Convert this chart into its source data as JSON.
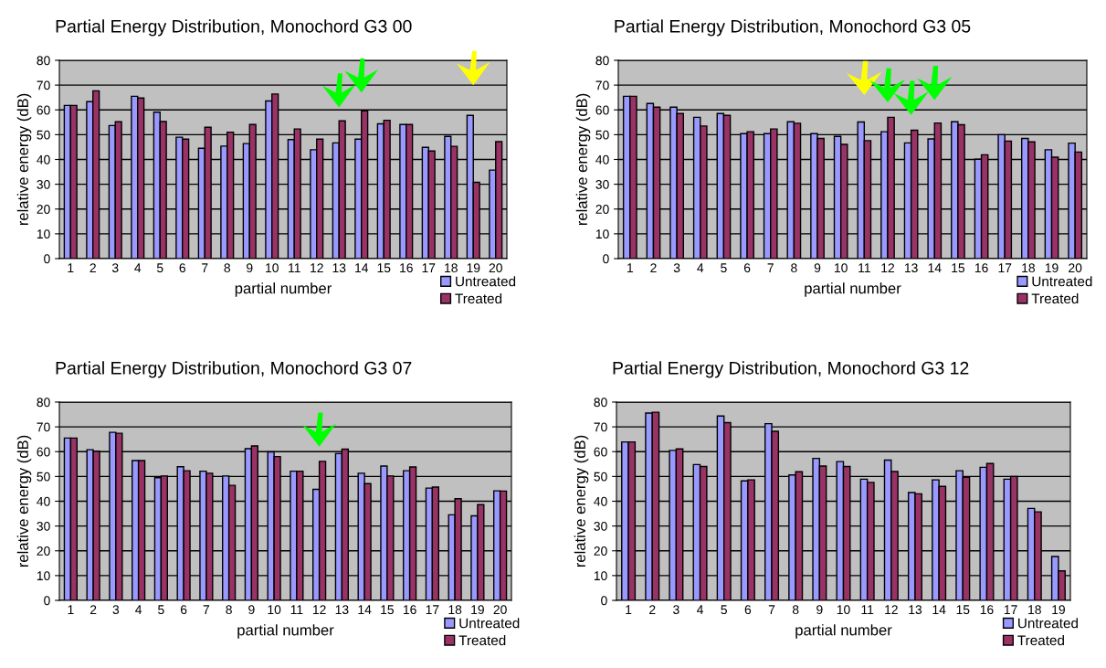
{
  "chart_data": [
    {
      "type": "bar",
      "title": "Partial Energy Distribution, Monochord G3 00",
      "xlabel": "partial number",
      "ylabel": "relative energy (dB)",
      "categories": [
        "1",
        "2",
        "3",
        "4",
        "5",
        "6",
        "7",
        "8",
        "9",
        "10",
        "11",
        "12",
        "13",
        "14",
        "15",
        "16",
        "17",
        "18",
        "19",
        "20"
      ],
      "series": [
        {
          "name": "Untreated",
          "color": "#9999ff",
          "values": [
            61.8,
            63.3,
            53.7,
            65.5,
            59.1,
            49,
            44.5,
            45.4,
            46.4,
            63.6,
            48,
            43.9,
            46.7,
            48.2,
            54.4,
            54.1,
            44.9,
            49.3,
            57.8,
            35.7
          ]
        },
        {
          "name": "Treated",
          "color": "#993366",
          "values": [
            61.8,
            67.7,
            55.2,
            64.8,
            55.3,
            48.2,
            53,
            51,
            54.1,
            66.4,
            52.3,
            48.2,
            55.6,
            59.6,
            55.8,
            54.1,
            43.4,
            45.3,
            30.8,
            47.2
          ]
        }
      ],
      "ylim": [
        0,
        80
      ],
      "yticks": [
        0,
        10,
        20,
        30,
        40,
        50,
        60,
        70,
        80
      ],
      "grid": "y",
      "legend": "bottom right"
    },
    {
      "type": "bar",
      "title": "Partial Energy Distribution, Monochord G3 05",
      "xlabel": "partial number",
      "ylabel": "relative energy (dB)",
      "categories": [
        "1",
        "2",
        "3",
        "4",
        "5",
        "6",
        "7",
        "8",
        "9",
        "10",
        "11",
        "12",
        "13",
        "14",
        "15",
        "16",
        "17",
        "18",
        "19",
        "20"
      ],
      "series": [
        {
          "name": "Untreated",
          "color": "#9999ff",
          "values": [
            65.5,
            62.6,
            61.1,
            57,
            58.5,
            50.4,
            50.4,
            55.2,
            50.4,
            49.3,
            55.1,
            51.2,
            46.7,
            48.3,
            55.2,
            40.1,
            50,
            48.5,
            43.9,
            46.6
          ]
        },
        {
          "name": "Treated",
          "color": "#993366",
          "values": [
            65.5,
            61.1,
            58.5,
            53.5,
            57.8,
            51.2,
            52.3,
            54.6,
            48.5,
            46.1,
            47.6,
            57,
            51.8,
            54.7,
            54,
            41.9,
            47.4,
            47.1,
            40.9,
            43
          ]
        }
      ],
      "ylim": [
        0,
        80
      ],
      "yticks": [
        0,
        10,
        20,
        30,
        40,
        50,
        60,
        70,
        80
      ],
      "grid": "y",
      "legend": "bottom right"
    },
    {
      "type": "bar",
      "title": "Partial Energy Distribution, Monochord G3 07",
      "xlabel": "partial number",
      "ylabel": "relative energy (dB)",
      "categories": [
        "1",
        "2",
        "3",
        "4",
        "5",
        "6",
        "7",
        "8",
        "9",
        "10",
        "11",
        "12",
        "13",
        "14",
        "15",
        "16",
        "17",
        "18",
        "19",
        "20"
      ],
      "series": [
        {
          "name": "Untreated",
          "color": "#9999ff",
          "values": [
            65.5,
            60.8,
            67.8,
            56.4,
            49.5,
            53.9,
            52.1,
            50.2,
            61.2,
            59.9,
            52.1,
            44.8,
            59.2,
            51.3,
            54.2,
            52.3,
            45.3,
            34.5,
            34.1,
            44.2
          ]
        },
        {
          "name": "Treated",
          "color": "#993366",
          "values": [
            65.5,
            60.2,
            67.4,
            56.4,
            50.2,
            52.3,
            51.3,
            46.4,
            62.3,
            58,
            52.1,
            56.1,
            61,
            47.1,
            50.2,
            53.8,
            45.7,
            41,
            38.6,
            44.1
          ]
        }
      ],
      "ylim": [
        0,
        80
      ],
      "yticks": [
        0,
        10,
        20,
        30,
        40,
        50,
        60,
        70,
        80
      ],
      "grid": "y",
      "legend": "bottom right"
    },
    {
      "type": "bar",
      "title": "Partial Energy Distribution, Monochord G3 12",
      "xlabel": "partial number",
      "ylabel": "relative energy (dB)",
      "categories": [
        "1",
        "2",
        "3",
        "4",
        "5",
        "6",
        "7",
        "8",
        "9",
        "10",
        "11",
        "12",
        "13",
        "14",
        "15",
        "16",
        "17",
        "18",
        "19"
      ],
      "series": [
        {
          "name": "Untreated",
          "color": "#9999ff",
          "values": [
            63.9,
            75.6,
            60.5,
            54.8,
            74.4,
            48.2,
            71.3,
            50.6,
            57.3,
            56,
            48.9,
            56.6,
            43.5,
            48.6,
            52.3,
            53.7,
            48.9,
            37.1,
            17.7
          ]
        },
        {
          "name": "Treated",
          "color": "#993366",
          "values": [
            63.9,
            75.9,
            61.1,
            54,
            71.7,
            48.6,
            68.2,
            51.9,
            54.2,
            54,
            47.6,
            52,
            43,
            46,
            49.7,
            55.2,
            50,
            35.7,
            11.9
          ]
        }
      ],
      "ylim": [
        0,
        80
      ],
      "yticks": [
        0,
        10,
        20,
        30,
        40,
        50,
        60,
        70,
        80
      ],
      "grid": "y",
      "legend": "bottom right"
    }
  ]
}
